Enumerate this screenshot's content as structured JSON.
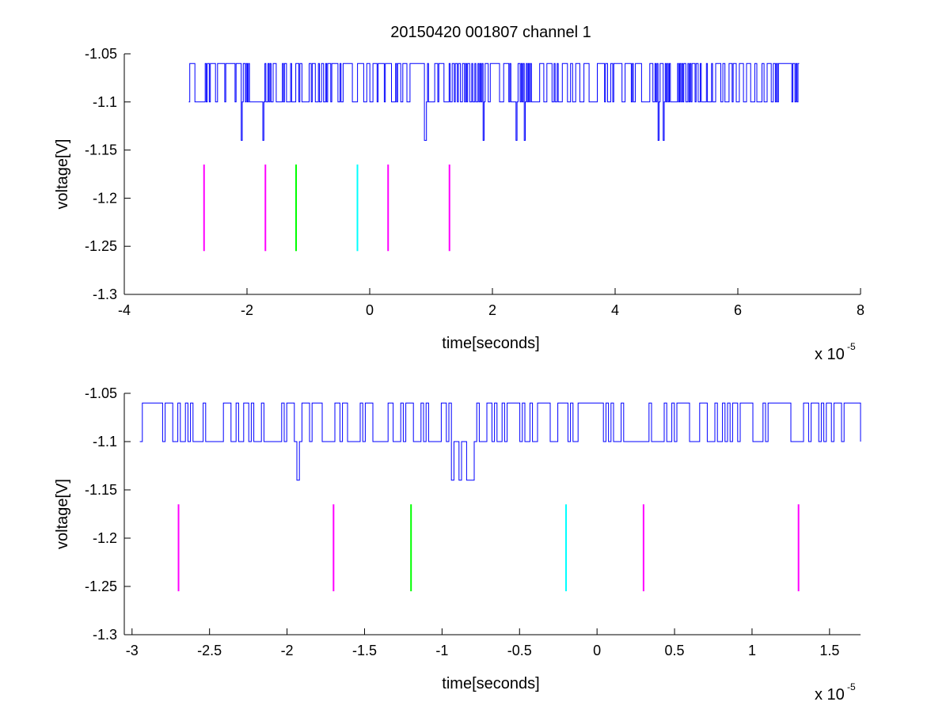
{
  "figure_title": "20150420 001807 channel 1",
  "colors": {
    "signal": "#0000ff",
    "marker_magenta": "#ff00ff",
    "marker_green": "#00ff00",
    "marker_cyan": "#00ffff",
    "axes": "#000000",
    "background": "#ffffff"
  },
  "chart_data": [
    {
      "type": "line",
      "title": "20150420 001807 channel 1",
      "xlabel": "time[seconds]",
      "ylabel": "voltage[V]",
      "x_exponent_base": "x 10",
      "x_exponent_power": "-5",
      "xlim": [
        -4,
        8
      ],
      "ylim": [
        -1.3,
        -1.05
      ],
      "xticks": [
        -4,
        -2,
        0,
        2,
        4,
        6,
        8
      ],
      "xtick_labels": [
        "-4",
        "-2",
        "0",
        "2",
        "4",
        "6",
        "8"
      ],
      "yticks": [
        -1.3,
        -1.25,
        -1.2,
        -1.15,
        -1.1,
        -1.05
      ],
      "ytick_labels": [
        "-1.3",
        "-1.25",
        "-1.2",
        "-1.15",
        "-1.1",
        "-1.05"
      ],
      "grid": false,
      "series": [
        {
          "kind": "digitized signal",
          "x_range": [
            -2.95,
            7.0
          ],
          "levels": [
            -1.06,
            -1.1,
            -1.14
          ]
        }
      ],
      "markers": [
        {
          "x": -2.7,
          "y_range": [
            -1.255,
            -1.165
          ],
          "color": "magenta"
        },
        {
          "x": -1.7,
          "y_range": [
            -1.255,
            -1.165
          ],
          "color": "magenta"
        },
        {
          "x": -1.2,
          "y_range": [
            -1.255,
            -1.165
          ],
          "color": "green"
        },
        {
          "x": -0.2,
          "y_range": [
            -1.255,
            -1.165
          ],
          "color": "cyan"
        },
        {
          "x": 0.3,
          "y_range": [
            -1.255,
            -1.165
          ],
          "color": "magenta"
        },
        {
          "x": 1.3,
          "y_range": [
            -1.255,
            -1.165
          ],
          "color": "magenta"
        }
      ]
    },
    {
      "type": "line",
      "title": "",
      "xlabel": "time[seconds]",
      "ylabel": "voltage[V]",
      "x_exponent_base": "x 10",
      "x_exponent_power": "-5",
      "xlim": [
        -3.05,
        1.7
      ],
      "ylim": [
        -1.3,
        -1.05
      ],
      "xticks": [
        -3,
        -2.5,
        -2,
        -1.5,
        -1,
        -0.5,
        0,
        0.5,
        1,
        1.5
      ],
      "xtick_labels": [
        "-3",
        "-2.5",
        "-2",
        "-1.5",
        "-1",
        "-0.5",
        "0",
        "0.5",
        "1",
        "1.5"
      ],
      "yticks": [
        -1.3,
        -1.25,
        -1.2,
        -1.15,
        -1.1,
        -1.05
      ],
      "ytick_labels": [
        "-1.3",
        "-1.25",
        "-1.2",
        "-1.15",
        "-1.1",
        "-1.05"
      ],
      "grid": false,
      "series": [
        {
          "kind": "digitized signal",
          "x_range": [
            -2.95,
            1.7
          ],
          "levels": [
            -1.06,
            -1.1,
            -1.14
          ]
        }
      ],
      "markers": [
        {
          "x": -2.7,
          "y_range": [
            -1.255,
            -1.165
          ],
          "color": "magenta"
        },
        {
          "x": -1.7,
          "y_range": [
            -1.255,
            -1.165
          ],
          "color": "magenta"
        },
        {
          "x": -1.2,
          "y_range": [
            -1.255,
            -1.165
          ],
          "color": "green"
        },
        {
          "x": -0.2,
          "y_range": [
            -1.255,
            -1.165
          ],
          "color": "cyan"
        },
        {
          "x": 0.3,
          "y_range": [
            -1.255,
            -1.165
          ],
          "color": "magenta"
        },
        {
          "x": 1.3,
          "y_range": [
            -1.255,
            -1.165
          ],
          "color": "magenta"
        }
      ]
    }
  ]
}
